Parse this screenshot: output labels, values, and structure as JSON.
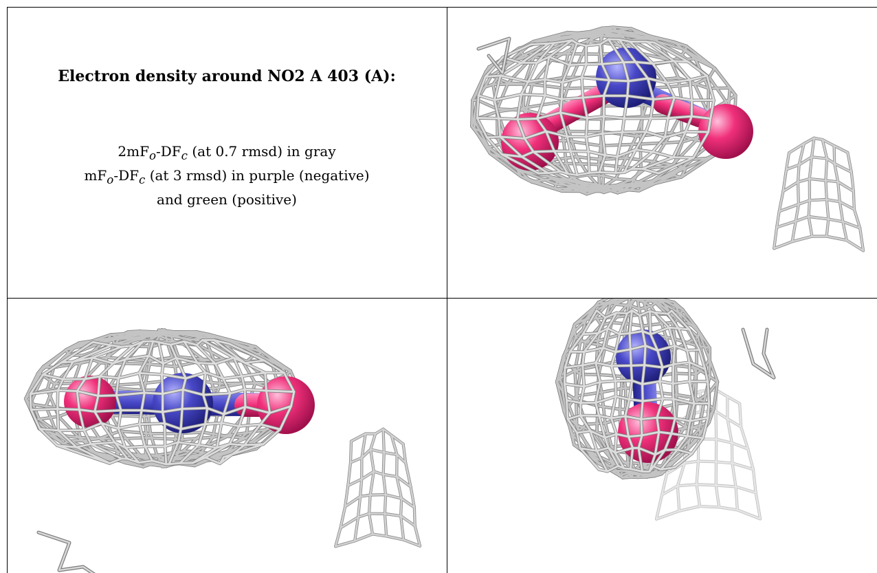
{
  "figure": {
    "title": "Electron density around NO2 A 403 (A):",
    "legend": {
      "line1": {
        "a": "2mF",
        "a_sub": "o",
        "b": "-DF",
        "b_sub": "c",
        "rest": " (at 0.7 rmsd) in gray"
      },
      "line2": {
        "a": "mF",
        "a_sub": "o",
        "b": "-DF",
        "b_sub": "c",
        "rest": " (at 3 rmsd) in purple (negative)"
      },
      "line3": "and green (positive)"
    },
    "colors": {
      "mesh_2fofc": "#c4c4c4",
      "mesh_edge": "#7a7a7a",
      "oxygen": "#f0307a",
      "nitrogen": "#4848c8",
      "grid": "#000000",
      "background": "#ffffff"
    },
    "panels": [
      {
        "view": "top-right",
        "icon": "electron-density-mesh-icon"
      },
      {
        "view": "bottom-left",
        "icon": "electron-density-mesh-icon"
      },
      {
        "view": "bottom-right",
        "icon": "electron-density-mesh-icon"
      }
    ]
  }
}
